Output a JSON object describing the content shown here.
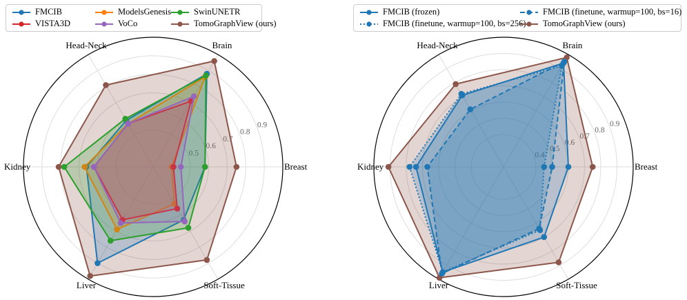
{
  "chart_data": [
    {
      "type": "radar",
      "axes": [
        "Breast",
        "Brain",
        "Head-Neck",
        "Kidney",
        "Liver",
        "Soft-Tissue"
      ],
      "rlim": [
        0.3,
        1.0
      ],
      "rticks": [
        "0.5",
        "0.6",
        "0.7",
        "0.8",
        "0.9"
      ],
      "legend_position": "top",
      "series": [
        {
          "name": "FMCIB",
          "color": "#1f77b4",
          "style": "solid",
          "values": [
            0.58,
            0.88,
            0.59,
            0.66,
            0.9,
            0.63
          ]
        },
        {
          "name": "ModelsGenesis",
          "color": "#ff7f0e",
          "style": "solid",
          "values": [
            0.4,
            0.86,
            0.57,
            0.67,
            0.69,
            0.53
          ]
        },
        {
          "name": "SwinUNETR",
          "color": "#2ca02c",
          "style": "solid",
          "values": [
            0.58,
            0.87,
            0.6,
            0.78,
            0.76,
            0.68
          ]
        },
        {
          "name": "VISTA3D",
          "color": "#d62728",
          "style": "solid",
          "values": [
            0.41,
            0.71,
            0.57,
            0.62,
            0.63,
            0.56
          ]
        },
        {
          "name": "VoCo",
          "color": "#9467bd",
          "style": "solid",
          "values": [
            0.45,
            0.74,
            0.57,
            0.62,
            0.65,
            0.64
          ]
        },
        {
          "name": "TomoGraphView (ours)",
          "color": "#8c564b",
          "style": "solid",
          "fill": true,
          "values": [
            0.75,
            0.96,
            0.81,
            0.81,
            0.98,
            0.88
          ]
        }
      ]
    },
    {
      "type": "radar",
      "axes": [
        "Breast",
        "Brain",
        "Head-Neck",
        "Kidney",
        "Liver",
        "Soft-Tissue"
      ],
      "rlim": [
        0.2,
        1.0
      ],
      "rticks": [
        "0.4",
        "0.5",
        "0.6",
        "0.7",
        "0.8",
        "0.9"
      ],
      "legend_position": "top",
      "series": [
        {
          "name": "FMCIB (frozen)",
          "color": "#1f77b4",
          "style": "solid",
          "values": [
            0.6,
            0.94,
            0.71,
            0.74,
            0.95,
            0.7
          ]
        },
        {
          "name": "FMCIB (finetune, warmup=100, bs=16)",
          "color": "#1f77b4",
          "style": "dashed",
          "values": [
            0.5,
            0.95,
            0.61,
            0.67,
            0.96,
            0.64
          ]
        },
        {
          "name": "FMCIB (finetune, warmup=100, bs=256)",
          "color": "#1f77b4",
          "style": "dotted",
          "values": [
            0.45,
            0.92,
            0.72,
            0.78,
            0.95,
            0.65
          ]
        },
        {
          "name": "TomoGraphView (ours)",
          "color": "#8c564b",
          "style": "solid",
          "fill": true,
          "values": [
            0.75,
            0.98,
            0.79,
            0.91,
            0.99,
            0.88
          ]
        }
      ]
    }
  ]
}
